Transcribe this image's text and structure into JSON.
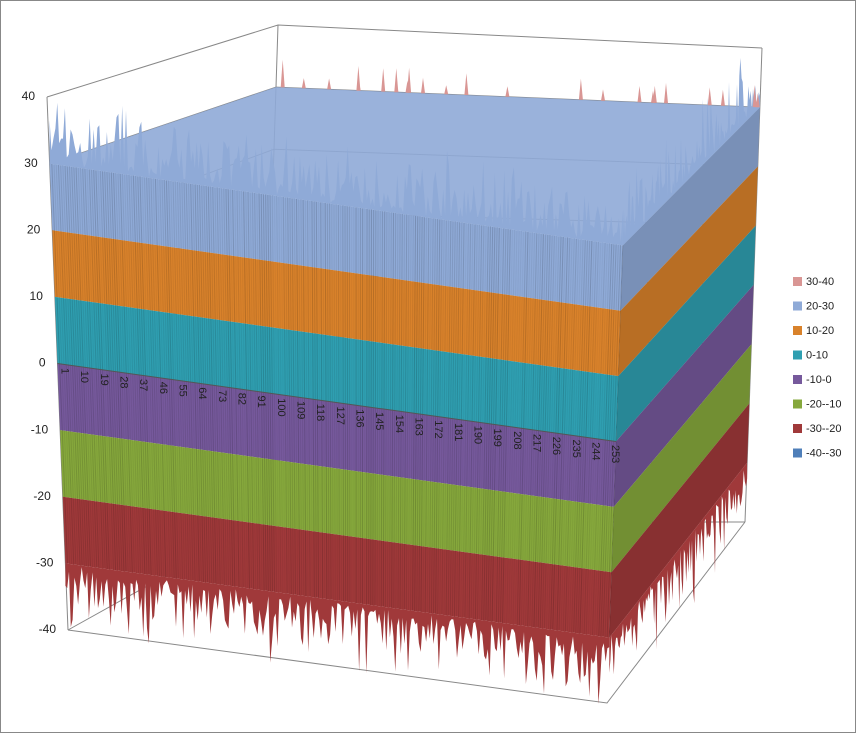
{
  "chart_data": {
    "type": "surface",
    "ylim": [
      -40,
      40
    ],
    "yticks": [
      -40,
      -30,
      -20,
      -10,
      0,
      10,
      20,
      30,
      40
    ],
    "categories": [
      "1",
      "10",
      "19",
      "28",
      "37",
      "46",
      "55",
      "64",
      "73",
      "82",
      "91",
      "100",
      "109",
      "118",
      "127",
      "136",
      "145",
      "154",
      "163",
      "172",
      "181",
      "190",
      "199",
      "208",
      "217",
      "226",
      "235",
      "244",
      "253"
    ],
    "series": [
      {
        "name": "30-40",
        "color": "#d99694"
      },
      {
        "name": "20-30",
        "color": "#8faad7"
      },
      {
        "name": "10-20",
        "color": "#d9822b"
      },
      {
        "name": "0-10",
        "color": "#2f9fb1"
      },
      {
        "name": "-10-0",
        "color": "#76599c"
      },
      {
        "name": "-20--10",
        "color": "#86a83c"
      },
      {
        "name": "-30--20",
        "color": "#a0393a"
      },
      {
        "name": "-40--30",
        "color": "#4f7fb9"
      }
    ],
    "grid": true,
    "legend": "right"
  }
}
